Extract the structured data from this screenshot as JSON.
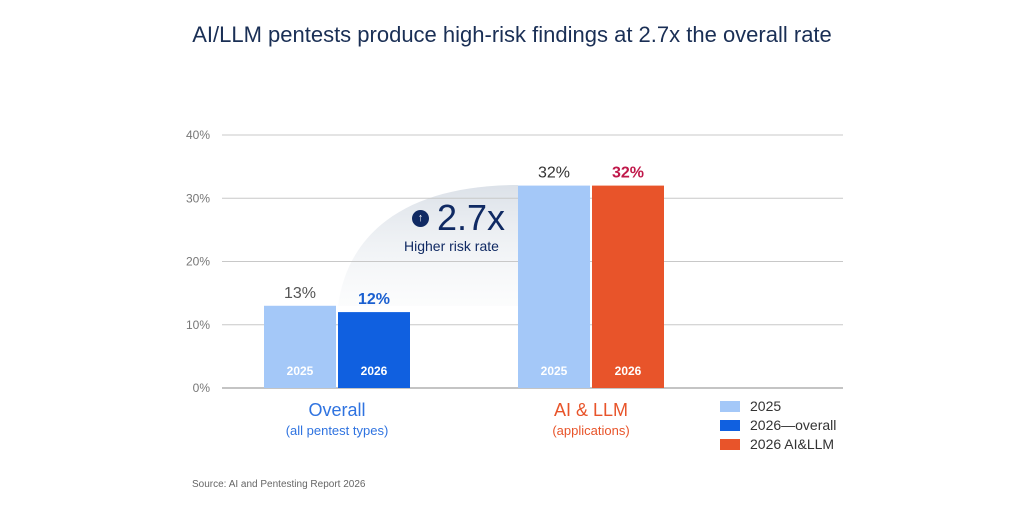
{
  "title": "AI/LLM pentests produce high-risk findings at 2.7x the overall rate",
  "source": "Source: AI and Pentesting Report 2026",
  "callout": {
    "value": "2.7x",
    "label": "Higher risk rate",
    "icon": "arrow-up-icon"
  },
  "groups": [
    {
      "name": "Overall",
      "sub": "(all pentest types)",
      "color": "#2f73e0",
      "sub_color": "#2f73e0"
    },
    {
      "name": "AI & LLM",
      "sub": "(applications)",
      "color": "#e8542a",
      "sub_color": "#e8542a"
    }
  ],
  "legend": [
    {
      "label": "2025",
      "color": "#a4c8f8"
    },
    {
      "label": "2026—overall",
      "color": "#1060e0"
    },
    {
      "label": "2026 AI&LLM",
      "color": "#e8542a"
    }
  ],
  "chart_data": {
    "type": "bar",
    "title": "AI/LLM pentests produce high-risk findings at 2.7x the overall rate",
    "ylim": [
      0,
      40
    ],
    "yticks": [
      0,
      10,
      20,
      30,
      40
    ],
    "ytick_labels": [
      "0%",
      "10%",
      "20%",
      "30%",
      "40%"
    ],
    "grid": true,
    "legend_position": "bottom-right",
    "categories": [
      "Overall",
      "AI & LLM"
    ],
    "bars": [
      {
        "group": 0,
        "year": "2025",
        "value": 13,
        "label": "13%",
        "color": "#a4c8f8",
        "label_color": "#555555"
      },
      {
        "group": 0,
        "year": "2026",
        "value": 12,
        "label": "12%",
        "color": "#1060e0",
        "label_color": "#1a5fd0"
      },
      {
        "group": 1,
        "year": "2025",
        "value": 32,
        "label": "32%",
        "color": "#a4c8f8",
        "label_color": "#333333"
      },
      {
        "group": 1,
        "year": "2026",
        "value": 32,
        "label": "32%",
        "color": "#e8542a",
        "label_color": "#c0184a"
      }
    ]
  }
}
